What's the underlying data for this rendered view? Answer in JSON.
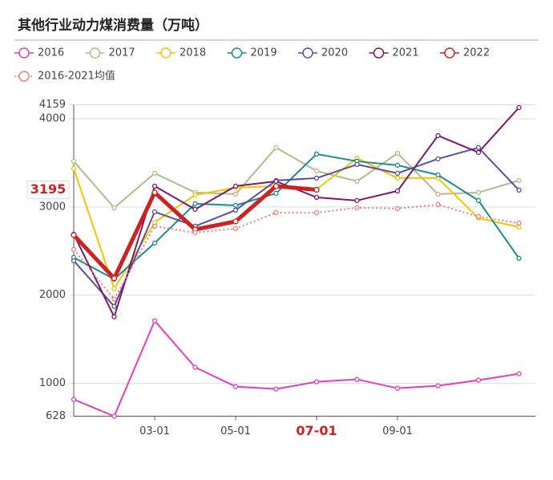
{
  "chart_data": {
    "type": "line",
    "title": "其他行业动力煤消费量（万吨）",
    "categories": [
      null,
      null,
      "03-01",
      null,
      "05-01",
      null,
      "07-01",
      null,
      "09-01",
      null,
      null,
      null
    ],
    "series": [
      {
        "name": "2016",
        "color": "#e040c0",
        "values": [
          818,
          628,
          1709,
          1182,
          964,
          936,
          1018,
          1045,
          945,
          973,
          1036,
          1109
        ]
      },
      {
        "name": "2017",
        "color": "#b8b88c",
        "values": [
          3518,
          2991,
          3382,
          3164,
          3145,
          3673,
          3409,
          3291,
          3609,
          3145,
          3164,
          3300
        ]
      },
      {
        "name": "2018",
        "color": "#f2c500",
        "values": [
          3436,
          2073,
          2827,
          3136,
          3218,
          3236,
          3200,
          3555,
          3327,
          3327,
          2873,
          2773
        ]
      },
      {
        "name": "2019",
        "color": "#1a8c8c",
        "values": [
          2427,
          2182,
          2591,
          3036,
          3018,
          3155,
          3600,
          3518,
          3473,
          3364,
          3073,
          2418
        ]
      },
      {
        "name": "2020",
        "color": "#5a4fa0",
        "values": [
          2391,
          1873,
          2945,
          2782,
          2964,
          3300,
          3327,
          3482,
          3382,
          3545,
          3673,
          3191
        ]
      },
      {
        "name": "2021",
        "color": "#7a1a6a",
        "values": [
          2691,
          1755,
          3236,
          2973,
          3236,
          3291,
          3109,
          3073,
          3182,
          3809,
          3618,
          4127
        ]
      },
      {
        "name": "2022",
        "color": "#cc2222",
        "values": [
          2682,
          2191,
          3164,
          2745,
          2836,
          3236,
          3195,
          null,
          null,
          null,
          null,
          null
        ]
      },
      {
        "name": "2016-2021均值",
        "color": "#e88080",
        "dashed": true,
        "values": [
          2518,
          1955,
          2782,
          2709,
          2755,
          2936,
          2936,
          2991,
          2982,
          3027,
          2891,
          2818
        ]
      }
    ],
    "ylim": [
      628,
      4159
    ],
    "yticks": [
      628,
      1000,
      2000,
      3000,
      4000,
      4159
    ],
    "y_annotation": 3195,
    "grid": true
  }
}
